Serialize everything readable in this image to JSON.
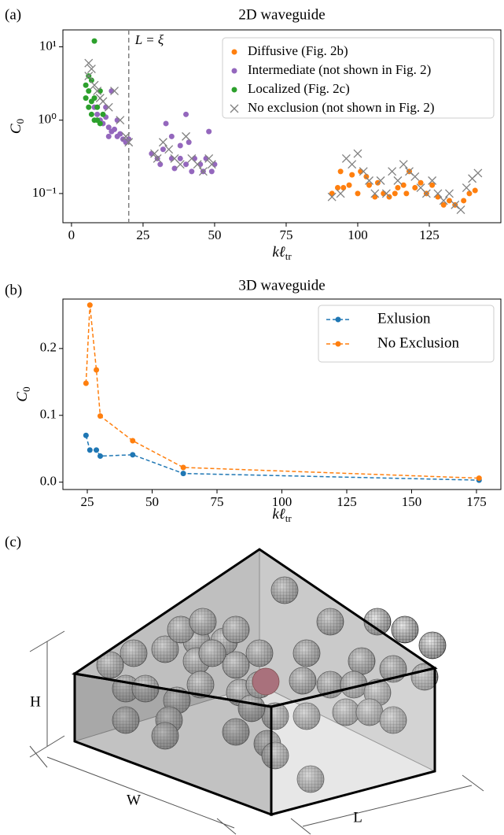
{
  "chart_data": [
    {
      "type": "scatter",
      "panel_label": "(a)",
      "title": "2D waveguide",
      "x_label": {
        "main": "kℓ",
        "sub": "tr"
      },
      "y_label": {
        "main": "C",
        "sub": "0"
      },
      "xlim": [
        -3,
        150
      ],
      "ylim": [
        0.04,
        17
      ],
      "log_y": true,
      "xticks": [
        0,
        25,
        50,
        75,
        100,
        125
      ],
      "yticks": [
        {
          "value": 0.1,
          "label": "10⁻¹"
        },
        {
          "value": 1,
          "label": "10⁰"
        },
        {
          "value": 10,
          "label": "10¹"
        }
      ],
      "vline": {
        "x": 20,
        "label": "L = ξ",
        "color": "#808080"
      },
      "legend": "upper right",
      "series": [
        {
          "name": "Diffusive (Fig. 2b)",
          "color": "#ff7f0e",
          "marker": "o",
          "x": [
            91,
            93,
            94,
            95,
            97,
            98,
            100,
            101,
            103,
            104,
            106,
            107,
            109,
            111,
            113,
            114,
            116,
            117,
            118,
            120,
            122,
            124,
            126,
            128,
            130,
            132,
            134,
            137,
            139,
            141
          ],
          "values": [
            0.1,
            0.12,
            0.2,
            0.12,
            0.13,
            0.18,
            0.1,
            0.2,
            0.17,
            0.13,
            0.09,
            0.14,
            0.1,
            0.09,
            0.1,
            0.12,
            0.13,
            0.1,
            0.2,
            0.12,
            0.14,
            0.1,
            0.13,
            0.09,
            0.07,
            0.08,
            0.07,
            0.08,
            0.1,
            0.11
          ]
        },
        {
          "name": "Intermediate (not shown in Fig. 2)",
          "color": "#9467bd",
          "marker": "o",
          "x": [
            8,
            9,
            10,
            11,
            12,
            13,
            14,
            15,
            16,
            17,
            18,
            19,
            20,
            12,
            14,
            16,
            13,
            28,
            30,
            31,
            32,
            33,
            35,
            36,
            38,
            40,
            40,
            41,
            42,
            43,
            45,
            46,
            47,
            48,
            49,
            50,
            35,
            38
          ],
          "values": [
            1.5,
            1.2,
            1.0,
            0.9,
            1.1,
            0.8,
            0.7,
            0.75,
            0.6,
            0.65,
            0.55,
            0.5,
            0.55,
            1.5,
            2.5,
            1.0,
            0.6,
            0.35,
            0.3,
            0.25,
            0.4,
            0.9,
            0.3,
            0.22,
            0.3,
            0.25,
            1.2,
            0.5,
            0.2,
            0.3,
            0.25,
            0.2,
            0.3,
            0.7,
            0.2,
            0.25,
            0.6,
            0.45
          ]
        },
        {
          "name": "Localized (Fig. 2c)",
          "color": "#2ca02c",
          "marker": "o",
          "x": [
            5,
            6,
            6,
            7,
            7,
            8,
            8,
            9,
            9,
            10,
            10,
            11,
            6,
            7,
            5,
            8
          ],
          "values": [
            3,
            2.5,
            1.5,
            3.5,
            1.2,
            12,
            2,
            1.5,
            1,
            2.5,
            0.9,
            1.2,
            4,
            1.8,
            2,
            1.0
          ]
        },
        {
          "name": "No exclusion (not shown in Fig. 2)",
          "color": "#808080",
          "marker": "x",
          "x": [
            6,
            6,
            7,
            8,
            9,
            10,
            11,
            13,
            15,
            17,
            19,
            20,
            29,
            30,
            32,
            34,
            36,
            38,
            40,
            42,
            44,
            46,
            48,
            49,
            91,
            94,
            96,
            98,
            100,
            102,
            104,
            106,
            108,
            110,
            112,
            114,
            116,
            118,
            120,
            122,
            124,
            126,
            128,
            130,
            132,
            134,
            136,
            138,
            140,
            142
          ],
          "values": [
            6,
            4,
            5,
            3,
            2.5,
            2,
            1.8,
            1.5,
            2.5,
            1,
            0.6,
            0.5,
            0.35,
            0.3,
            0.5,
            0.4,
            0.3,
            0.25,
            0.6,
            0.3,
            0.25,
            0.2,
            0.3,
            0.25,
            0.09,
            0.1,
            0.3,
            0.25,
            0.35,
            0.2,
            0.15,
            0.1,
            0.15,
            0.1,
            0.2,
            0.15,
            0.25,
            0.2,
            0.17,
            0.12,
            0.1,
            0.15,
            0.1,
            0.08,
            0.1,
            0.07,
            0.06,
            0.12,
            0.16,
            0.19
          ]
        }
      ]
    },
    {
      "type": "line",
      "panel_label": "(b)",
      "title": "3D waveguide",
      "x_label": {
        "main": "kℓ",
        "sub": "tr"
      },
      "y_label": {
        "main": "C",
        "sub": "0"
      },
      "xlim": [
        15.6,
        184.4
      ],
      "ylim": [
        -0.011,
        0.274
      ],
      "xticks": [
        25,
        50,
        75,
        100,
        125,
        150,
        175
      ],
      "yticks": [
        {
          "value": 0,
          "label": "0.0"
        },
        0.1,
        0.2
      ],
      "legend": "upper right",
      "x": [
        24.5,
        26,
        28.5,
        30,
        42.5,
        62,
        176
      ],
      "series": [
        {
          "name": "Exlusion",
          "color": "#1f77b4",
          "values": [
            0.07,
            0.048,
            0.048,
            0.039,
            0.041,
            0.013,
            0.003
          ]
        },
        {
          "name": "No Exclusion",
          "color": "#ff7f0e",
          "values": [
            0.148,
            0.265,
            0.168,
            0.099,
            0.062,
            0.022,
            0.006
          ]
        }
      ]
    }
  ],
  "diagram": {
    "panel_label": "(c)",
    "dimension_labels": {
      "height": "H",
      "width": "W",
      "length": "L"
    }
  }
}
